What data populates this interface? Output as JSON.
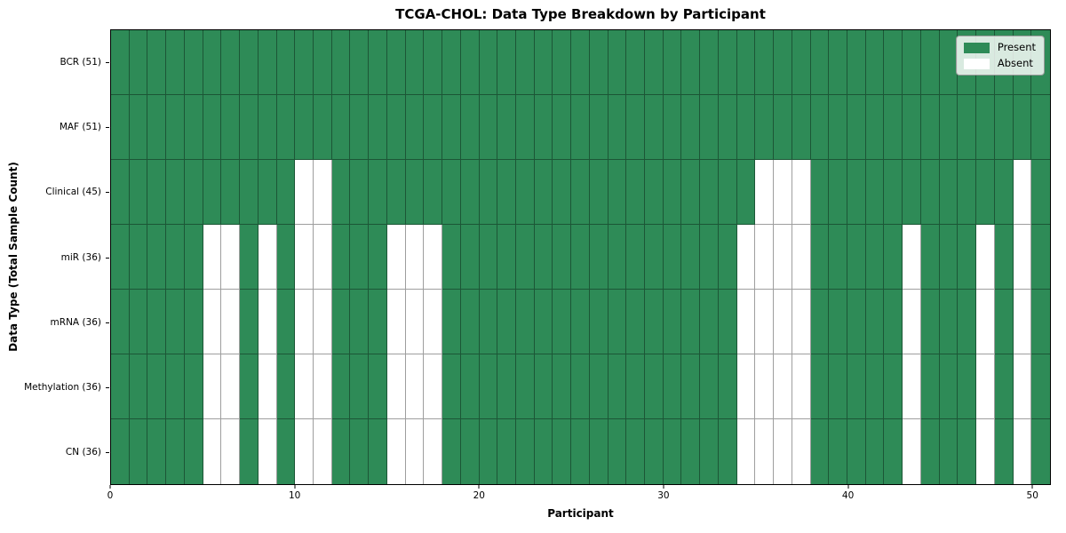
{
  "chart_data": {
    "type": "heatmap",
    "title": "TCGA-CHOL: Data Type Breakdown by Participant",
    "xlabel": "Participant",
    "ylabel": "Data Type (Total Sample Count)",
    "x_ticks": [
      0,
      10,
      20,
      30,
      40,
      50
    ],
    "x_range": [
      0,
      51
    ],
    "n_participants": 51,
    "grid": true,
    "legend_position": "upper right",
    "legend": {
      "items": [
        {
          "label": "Present",
          "color": "#2E8B57"
        },
        {
          "label": "Absent",
          "color": "#FFFFFF"
        }
      ]
    },
    "colors": {
      "present": "#2E8B57",
      "absent": "#FFFFFF",
      "gridline": "rgba(0,0,0,0.38)"
    },
    "rows": [
      {
        "label": "BCR (51)",
        "total": 51,
        "absent_participants": []
      },
      {
        "label": "MAF (51)",
        "total": 51,
        "absent_participants": []
      },
      {
        "label": "Clinical (45)",
        "total": 45,
        "absent_participants": [
          10,
          11,
          35,
          36,
          37,
          49
        ]
      },
      {
        "label": "miR (36)",
        "total": 36,
        "absent_participants": [
          5,
          6,
          8,
          10,
          11,
          15,
          16,
          17,
          34,
          35,
          36,
          37,
          43,
          47,
          49
        ]
      },
      {
        "label": "mRNA (36)",
        "total": 36,
        "absent_participants": [
          5,
          6,
          8,
          10,
          11,
          15,
          16,
          17,
          34,
          35,
          36,
          37,
          43,
          47,
          49
        ]
      },
      {
        "label": "Methylation (36)",
        "total": 36,
        "absent_participants": [
          5,
          6,
          8,
          10,
          11,
          15,
          16,
          17,
          34,
          35,
          36,
          37,
          43,
          47,
          49
        ]
      },
      {
        "label": "CN (36)",
        "total": 36,
        "absent_participants": [
          5,
          6,
          8,
          10,
          11,
          15,
          16,
          17,
          34,
          35,
          36,
          37,
          43,
          47,
          49
        ]
      }
    ]
  }
}
